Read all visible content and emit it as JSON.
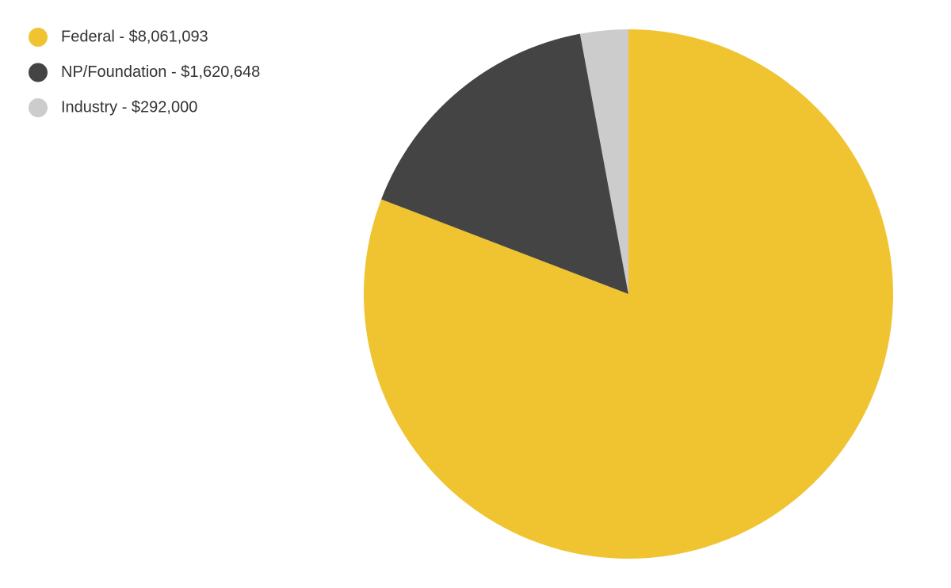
{
  "chart_data": {
    "type": "pie",
    "categories": [
      "Federal - $8,061,093",
      "NP/Foundation - $1,620,648",
      "Industry - $292,000"
    ],
    "values": [
      8061093,
      1620648,
      292000
    ],
    "colors": [
      "#f0c331",
      "#444444",
      "#cccccc"
    ],
    "legend": "top-left"
  }
}
